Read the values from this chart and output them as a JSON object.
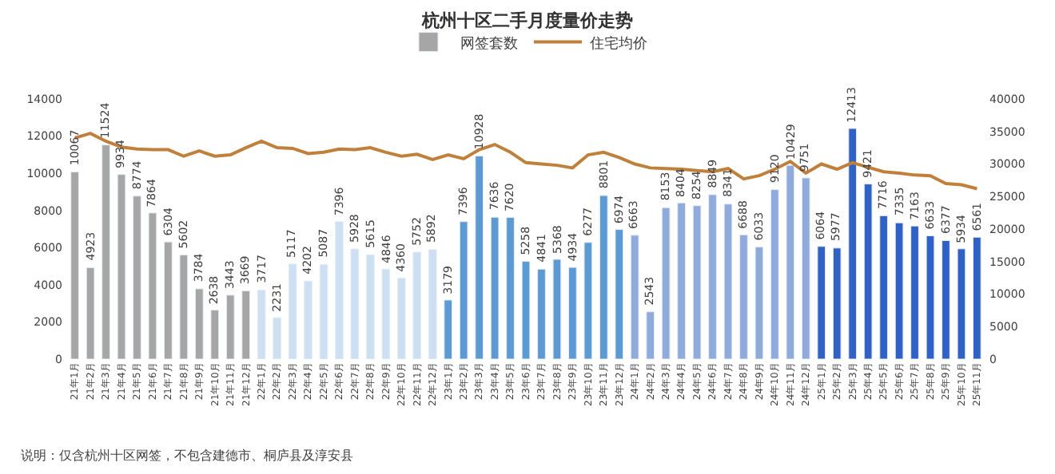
{
  "chart_data": {
    "type": "bar",
    "title": "杭州十区二手月度量价走势",
    "categories": [
      "21年1月",
      "21年2月",
      "21年3月",
      "21年4月",
      "21年5月",
      "21年6月",
      "21年7月",
      "21年8月",
      "21年9月",
      "21年10月",
      "21年11月",
      "21年12月",
      "22年1月",
      "22年2月",
      "22年3月",
      "22年4月",
      "22年5月",
      "22年6月",
      "22年7月",
      "22年8月",
      "22年9月",
      "22年10月",
      "22年11月",
      "22年12月",
      "23年1月",
      "23年2月",
      "23年3月",
      "23年4月",
      "23年5月",
      "23年6月",
      "23年7月",
      "23年8月",
      "23年9月",
      "23年10月",
      "23年11月",
      "23年12月",
      "24年1月",
      "24年2月",
      "24年3月",
      "24年4月",
      "24年5月",
      "24年6月",
      "24年7月",
      "24年8月",
      "24年9月",
      "24年10月",
      "24年11月",
      "24年12月",
      "25年1月",
      "25年2月",
      "25年3月",
      "25年4月",
      "25年5月",
      "25年6月",
      "25年7月",
      "25年8月",
      "25年9月",
      "25年10月",
      "25年11月"
    ],
    "series": [
      {
        "name": "网签套数",
        "colors": [
          "#a6a6a6",
          "#a6a6a6",
          "#a6a6a6",
          "#a6a6a6",
          "#a6a6a6",
          "#a6a6a6",
          "#a6a6a6",
          "#a6a6a6",
          "#a6a6a6",
          "#a6a6a6",
          "#a6a6a6",
          "#a6a6a6",
          "#cddff3",
          "#cddff3",
          "#cddff3",
          "#cddff3",
          "#cddff3",
          "#cddff3",
          "#cddff3",
          "#cddff3",
          "#cddff3",
          "#cddff3",
          "#cddff3",
          "#cddff3",
          "#5b9bd5",
          "#5b9bd5",
          "#5b9bd5",
          "#5b9bd5",
          "#5b9bd5",
          "#5b9bd5",
          "#5b9bd5",
          "#5b9bd5",
          "#5b9bd5",
          "#5b9bd5",
          "#5b9bd5",
          "#5b9bd5",
          "#8faadc",
          "#8faadc",
          "#8faadc",
          "#8faadc",
          "#8faadc",
          "#8faadc",
          "#8faadc",
          "#8faadc",
          "#8faadc",
          "#8faadc",
          "#8faadc",
          "#8faadc",
          "#2f62c8",
          "#2f62c8",
          "#2f62c8",
          "#2f62c8",
          "#2f62c8",
          "#2f62c8",
          "#2f62c8",
          "#2f62c8",
          "#2f62c8",
          "#2f62c8",
          "#2f62c8"
        ],
        "value_labels": [
          "10067",
          "4923",
          "11524",
          "9934",
          "8774",
          "7864",
          "6304",
          "5602",
          "3784",
          "2638",
          "3443",
          "3669",
          "3717",
          "2231",
          "5117",
          "4202",
          "5087",
          "7396",
          "5928",
          "5615",
          "4846",
          "4360",
          "5752",
          "5892",
          "3179",
          "7396",
          "10928",
          "7636",
          "7620",
          "5258",
          "4841",
          "5368",
          "4934",
          "6277",
          "8801",
          "6974",
          "6663",
          "2543",
          "8153",
          "8404",
          "8254",
          "8849",
          "8341",
          "6688",
          "6033",
          "9120",
          "10429",
          "9751",
          "6064",
          "5977",
          "12413",
          "9421",
          "7716",
          "7335",
          "7163",
          "6633",
          "6377",
          "5934",
          "6561"
        ],
        "values": [
          10067,
          4923,
          11524,
          9934,
          8774,
          7864,
          6304,
          5602,
          3784,
          2638,
          3443,
          3669,
          3717,
          2231,
          5117,
          4202,
          5087,
          7396,
          5928,
          5615,
          4846,
          4360,
          5752,
          5892,
          3179,
          7396,
          10928,
          7636,
          7620,
          5258,
          4841,
          5368,
          4934,
          6277,
          8801,
          6974,
          6663,
          2543,
          8153,
          8404,
          8254,
          8849,
          8341,
          6688,
          6033,
          9120,
          10429,
          9751,
          6064,
          5977,
          12413,
          9421,
          7716,
          7335,
          7163,
          6633,
          6377,
          5934,
          6561
        ]
      },
      {
        "name": "住宅均价",
        "type": "line",
        "axis": "y2",
        "color": "#c0803a",
        "values": [
          34000,
          34700,
          33500,
          32600,
          32300,
          32200,
          32200,
          31200,
          32000,
          31200,
          31400,
          32500,
          33500,
          32500,
          32400,
          31600,
          31800,
          32300,
          32200,
          32500,
          31800,
          31200,
          31500,
          30700,
          31400,
          30800,
          32200,
          33000,
          31800,
          30200,
          30000,
          29800,
          29400,
          31400,
          31800,
          31000,
          30000,
          29400,
          29300,
          29200,
          29000,
          28800,
          29300,
          27700,
          28200,
          29200,
          30400,
          28600,
          30000,
          29200,
          30200,
          29500,
          28800,
          28600,
          28300,
          28200,
          27000,
          26800,
          26200
        ]
      }
    ],
    "ylim": [
      0,
      14000
    ],
    "yticks": [
      0,
      2000,
      4000,
      6000,
      8000,
      10000,
      12000,
      14000
    ],
    "y2lim": [
      0,
      40000
    ],
    "y2ticks": [
      0,
      5000,
      10000,
      15000,
      20000,
      25000,
      30000,
      35000,
      40000
    ],
    "legend": "top",
    "annotations": [
      "说明：仅含杭州十区网签，不包含建德市、桐庐县及淳安县"
    ]
  }
}
